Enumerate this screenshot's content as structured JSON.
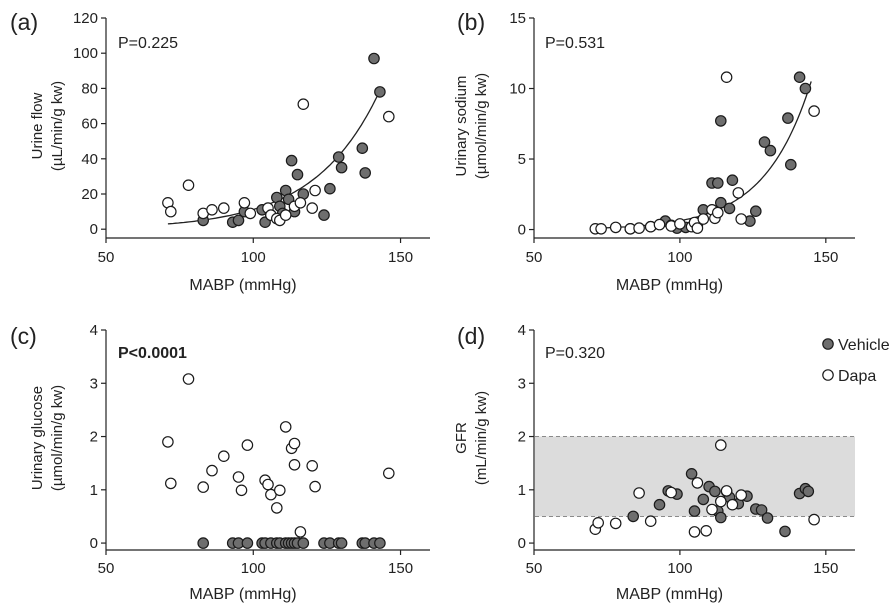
{
  "colors": {
    "vehicle": "#6e6e6e",
    "dapa": "#ffffff",
    "stroke": "#1a1a1a",
    "band": "#dcdcdc"
  },
  "legend": [
    {
      "name": "Vehicle",
      "color": "#6e6e6e"
    },
    {
      "name": "Dapa",
      "color": "#ffffff"
    }
  ],
  "chart_data": [
    {
      "type": "scatter",
      "panel": "(a)",
      "annotation": "P=0.225",
      "xlabel": "MABP (mmHg)",
      "ylabel": [
        "Urine flow",
        "(µL/min/g kw)"
      ],
      "xlim": [
        50,
        160
      ],
      "ylim": [
        -5,
        120
      ],
      "xticks": [
        50,
        100,
        150
      ],
      "yticks": [
        0,
        20,
        40,
        60,
        80,
        100,
        120
      ],
      "fit": {
        "type": "exponential",
        "x_range": [
          71,
          143
        ],
        "a": 3.0,
        "b": 0.0454,
        "x0": 71
      },
      "series": [
        {
          "name": "Vehicle",
          "points": [
            [
              83,
              5
            ],
            [
              93,
              4
            ],
            [
              95,
              5
            ],
            [
              97,
              10
            ],
            [
              103,
              11
            ],
            [
              104,
              4
            ],
            [
              106,
              8
            ],
            [
              108,
              18
            ],
            [
              109,
              13
            ],
            [
              110,
              9
            ],
            [
              111,
              22
            ],
            [
              112,
              17
            ],
            [
              113,
              39
            ],
            [
              114,
              10
            ],
            [
              115,
              31
            ],
            [
              117,
              20
            ],
            [
              124,
              8
            ],
            [
              126,
              23
            ],
            [
              129,
              41
            ],
            [
              130,
              35
            ],
            [
              137,
              46
            ],
            [
              138,
              32
            ],
            [
              141,
              97
            ],
            [
              143,
              78
            ]
          ]
        },
        {
          "name": "Dapa",
          "points": [
            [
              71,
              15
            ],
            [
              72,
              10
            ],
            [
              78,
              25
            ],
            [
              83,
              9
            ],
            [
              86,
              11
            ],
            [
              90,
              12
            ],
            [
              97,
              15
            ],
            [
              99,
              9
            ],
            [
              105,
              12
            ],
            [
              106,
              8
            ],
            [
              108,
              6
            ],
            [
              109,
              5
            ],
            [
              111,
              8
            ],
            [
              114,
              13
            ],
            [
              116,
              15
            ],
            [
              117,
              71
            ],
            [
              120,
              12
            ],
            [
              121,
              22
            ],
            [
              146,
              64
            ]
          ]
        }
      ]
    },
    {
      "type": "scatter",
      "panel": "(b)",
      "annotation": "P=0.531",
      "xlabel": "MABP (mmHg)",
      "ylabel": [
        "Urinary sodium",
        "(µmol/min/g kw)"
      ],
      "xlim": [
        50,
        160
      ],
      "ylim": [
        -0.6,
        15
      ],
      "xticks": [
        50,
        100,
        150
      ],
      "yticks": [
        0,
        5,
        10,
        15
      ],
      "fit": {
        "type": "exponential",
        "x_range": [
          71,
          145
        ],
        "a": 0.1,
        "b": 0.0629,
        "x0": 71
      },
      "series": [
        {
          "name": "Vehicle",
          "points": [
            [
              83,
              0.05
            ],
            [
              90,
              0.2
            ],
            [
              95,
              0.6
            ],
            [
              97,
              0.3
            ],
            [
              99,
              0.1
            ],
            [
              102,
              0.15
            ],
            [
              106,
              0.3
            ],
            [
              108,
              1.4
            ],
            [
              111,
              3.3
            ],
            [
              113,
              3.3
            ],
            [
              114,
              7.7
            ],
            [
              114,
              1.9
            ],
            [
              117,
              1.5
            ],
            [
              118,
              3.5
            ],
            [
              124,
              0.6
            ],
            [
              126,
              1.3
            ],
            [
              129,
              6.2
            ],
            [
              131,
              5.6
            ],
            [
              137,
              7.9
            ],
            [
              138,
              4.6
            ],
            [
              141,
              10.8
            ],
            [
              143,
              10.0
            ]
          ]
        },
        {
          "name": "Dapa",
          "points": [
            [
              71,
              0.05
            ],
            [
              73,
              0.05
            ],
            [
              78,
              0.15
            ],
            [
              83,
              0.05
            ],
            [
              86,
              0.1
            ],
            [
              90,
              0.2
            ],
            [
              93,
              0.35
            ],
            [
              97,
              0.25
            ],
            [
              100,
              0.4
            ],
            [
              104,
              0.2
            ],
            [
              105,
              0.5
            ],
            [
              106,
              0.1
            ],
            [
              108,
              0.75
            ],
            [
              111,
              1.4
            ],
            [
              112,
              0.8
            ],
            [
              113,
              1.2
            ],
            [
              116,
              10.8
            ],
            [
              120,
              2.6
            ],
            [
              121,
              0.75
            ],
            [
              146,
              8.4
            ]
          ]
        }
      ]
    },
    {
      "type": "scatter",
      "panel": "(c)",
      "annotation": "P<0.0001",
      "annotation_bold": true,
      "xlabel": "MABP (mmHg)",
      "ylabel": [
        "Urinary glucose",
        "(µmol/min/g kw)"
      ],
      "xlim": [
        50,
        160
      ],
      "ylim": [
        -0.13,
        4
      ],
      "xticks": [
        50,
        100,
        150
      ],
      "yticks": [
        0,
        1,
        2,
        3,
        4
      ],
      "series": [
        {
          "name": "Vehicle",
          "points": [
            [
              83,
              0
            ],
            [
              93,
              0
            ],
            [
              95,
              0
            ],
            [
              98,
              0
            ],
            [
              103,
              0
            ],
            [
              104,
              0
            ],
            [
              106,
              0
            ],
            [
              108,
              0
            ],
            [
              109,
              0
            ],
            [
              111,
              0
            ],
            [
              112,
              0
            ],
            [
              113,
              0
            ],
            [
              114,
              0
            ],
            [
              115,
              0
            ],
            [
              117,
              0
            ],
            [
              124,
              0
            ],
            [
              126,
              0
            ],
            [
              129,
              0
            ],
            [
              130,
              0
            ],
            [
              137,
              0
            ],
            [
              138,
              0
            ],
            [
              141,
              0
            ],
            [
              143,
              0
            ]
          ]
        },
        {
          "name": "Dapa",
          "points": [
            [
              71,
              1.9
            ],
            [
              72,
              1.12
            ],
            [
              78,
              3.08
            ],
            [
              83,
              1.05
            ],
            [
              86,
              1.36
            ],
            [
              90,
              1.63
            ],
            [
              95,
              1.24
            ],
            [
              96,
              0.99
            ],
            [
              98,
              1.84
            ],
            [
              104,
              1.18
            ],
            [
              105,
              1.1
            ],
            [
              106,
              0.91
            ],
            [
              108,
              0.66
            ],
            [
              109,
              0.99
            ],
            [
              111,
              2.18
            ],
            [
              113,
              1.78
            ],
            [
              114,
              1.87
            ],
            [
              114,
              1.47
            ],
            [
              116,
              0.21
            ],
            [
              120,
              1.45
            ],
            [
              121,
              1.06
            ],
            [
              146,
              1.31
            ]
          ]
        }
      ]
    },
    {
      "type": "scatter",
      "panel": "(d)",
      "annotation": "P=0.320",
      "xlabel": "MABP (mmHg)",
      "ylabel": [
        "GFR",
        "(mL/min/g kw)"
      ],
      "xlim": [
        50,
        160
      ],
      "ylim": [
        -0.13,
        4
      ],
      "xticks": [
        50,
        100,
        150
      ],
      "yticks": [
        0,
        1,
        2,
        3,
        4
      ],
      "reference_band": [
        0.5,
        2.0
      ],
      "series": [
        {
          "name": "Vehicle",
          "points": [
            [
              84,
              0.5
            ],
            [
              93,
              0.72
            ],
            [
              96,
              0.98
            ],
            [
              99,
              0.92
            ],
            [
              104,
              1.3
            ],
            [
              105,
              0.6
            ],
            [
              108,
              0.82
            ],
            [
              110,
              1.06
            ],
            [
              112,
              0.97
            ],
            [
              113,
              0.6
            ],
            [
              114,
              0.48
            ],
            [
              116,
              0.97
            ],
            [
              117,
              0.86
            ],
            [
              120,
              0.74
            ],
            [
              123,
              0.88
            ],
            [
              126,
              0.64
            ],
            [
              128,
              0.62
            ],
            [
              130,
              0.47
            ],
            [
              136,
              0.22
            ],
            [
              141,
              0.93
            ],
            [
              143,
              1.02
            ],
            [
              144,
              0.97
            ]
          ]
        },
        {
          "name": "Dapa",
          "points": [
            [
              71,
              0.26
            ],
            [
              72,
              0.38
            ],
            [
              78,
              0.37
            ],
            [
              86,
              0.94
            ],
            [
              90,
              0.41
            ],
            [
              97,
              0.95
            ],
            [
              105,
              0.21
            ],
            [
              106,
              1.13
            ],
            [
              109,
              0.23
            ],
            [
              111,
              0.63
            ],
            [
              114,
              1.84
            ],
            [
              114,
              0.78
            ],
            [
              116,
              0.98
            ],
            [
              118,
              0.72
            ],
            [
              121,
              0.9
            ],
            [
              146,
              0.44
            ]
          ]
        }
      ]
    }
  ]
}
